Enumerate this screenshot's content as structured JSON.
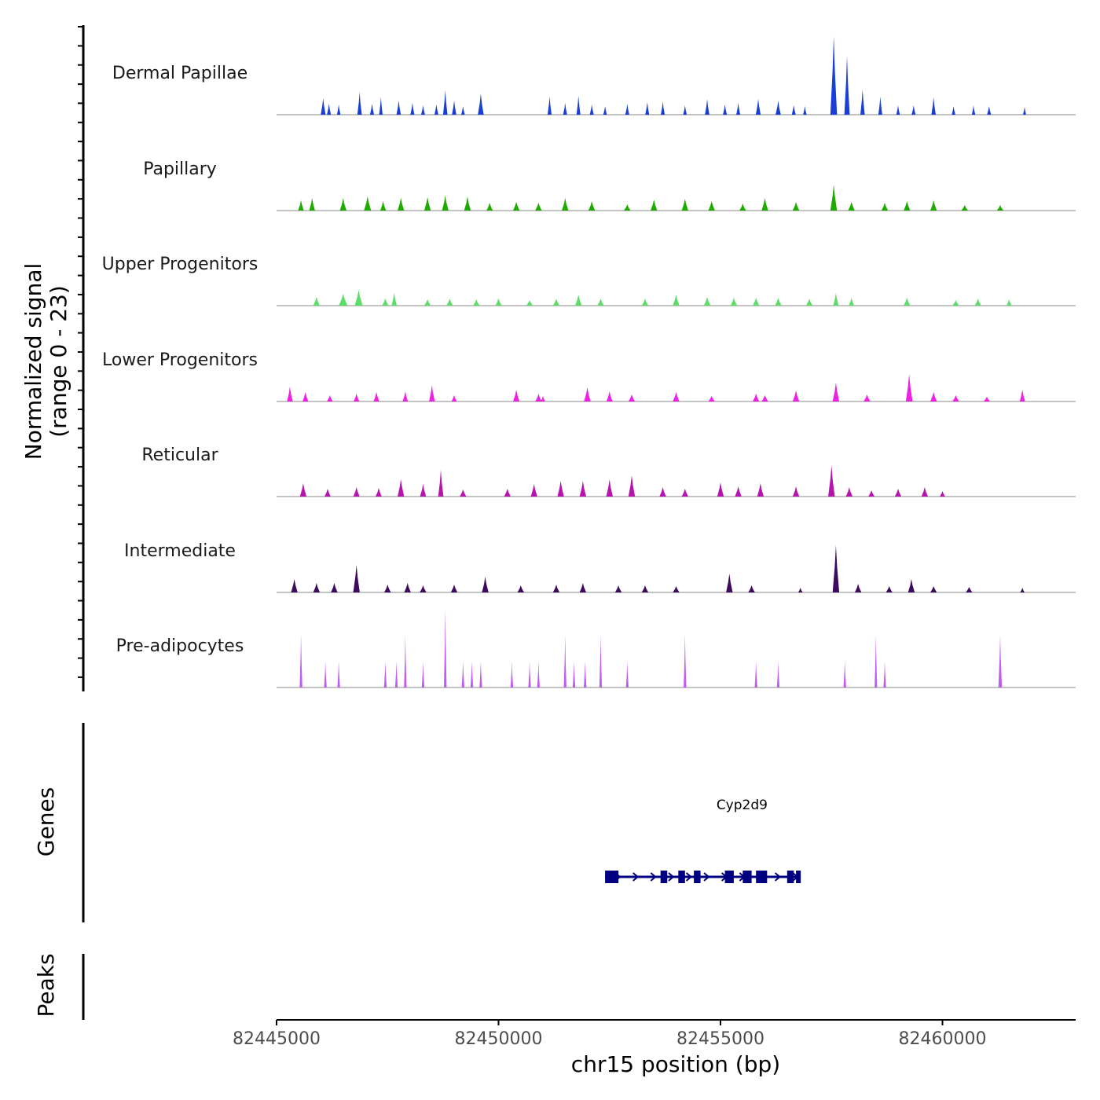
{
  "chart_data": {
    "type": "area",
    "title": "",
    "ylabel_line1": "Normalized signal",
    "ylabel_line2": "(range 0 - 23)",
    "xlabel": "chr15 position (bp)",
    "xlim": [
      82445000,
      82463000
    ],
    "ylim": [
      0,
      23
    ],
    "x_ticks": [
      82445000,
      82450000,
      82455000,
      82460000
    ],
    "tracks": [
      {
        "name": "Dermal Papillae",
        "color": "#1a3fd6",
        "peaks": [
          [
            82446050,
            0.21,
            0.11
          ],
          [
            82446180,
            0.14,
            0.09
          ],
          [
            82446400,
            0.13,
            0.08
          ],
          [
            82446870,
            0.29,
            0.1
          ],
          [
            82447150,
            0.14,
            0.09
          ],
          [
            82447350,
            0.22,
            0.08
          ],
          [
            82447750,
            0.18,
            0.1
          ],
          [
            82448060,
            0.15,
            0.09
          ],
          [
            82448300,
            0.12,
            0.09
          ],
          [
            82448600,
            0.13,
            0.09
          ],
          [
            82448800,
            0.31,
            0.1
          ],
          [
            82449000,
            0.18,
            0.1
          ],
          [
            82449200,
            0.11,
            0.08
          ],
          [
            82449600,
            0.27,
            0.13
          ],
          [
            82451150,
            0.23,
            0.09
          ],
          [
            82451500,
            0.15,
            0.09
          ],
          [
            82451800,
            0.24,
            0.09
          ],
          [
            82452100,
            0.13,
            0.09
          ],
          [
            82452400,
            0.11,
            0.08
          ],
          [
            82452900,
            0.14,
            0.09
          ],
          [
            82453350,
            0.16,
            0.09
          ],
          [
            82453700,
            0.17,
            0.09
          ],
          [
            82454200,
            0.12,
            0.08
          ],
          [
            82454700,
            0.2,
            0.1
          ],
          [
            82455100,
            0.13,
            0.09
          ],
          [
            82455400,
            0.15,
            0.09
          ],
          [
            82455850,
            0.2,
            0.11
          ],
          [
            82456300,
            0.18,
            0.12
          ],
          [
            82456650,
            0.12,
            0.09
          ],
          [
            82456900,
            0.11,
            0.08
          ],
          [
            82457550,
            1.0,
            0.15
          ],
          [
            82457850,
            0.75,
            0.12
          ],
          [
            82458200,
            0.32,
            0.1
          ],
          [
            82458600,
            0.23,
            0.09
          ],
          [
            82459000,
            0.12,
            0.08
          ],
          [
            82459350,
            0.12,
            0.09
          ],
          [
            82459800,
            0.22,
            0.1
          ],
          [
            82460250,
            0.11,
            0.08
          ],
          [
            82460700,
            0.12,
            0.08
          ],
          [
            82461050,
            0.11,
            0.09
          ],
          [
            82461850,
            0.1,
            0.07
          ]
        ]
      },
      {
        "name": "Papillary",
        "color": "#1faa00",
        "peaks": [
          [
            82445550,
            0.13,
            0.13
          ],
          [
            82445800,
            0.16,
            0.13
          ],
          [
            82446500,
            0.16,
            0.15
          ],
          [
            82447050,
            0.18,
            0.16
          ],
          [
            82447400,
            0.12,
            0.13
          ],
          [
            82447800,
            0.16,
            0.15
          ],
          [
            82448400,
            0.17,
            0.15
          ],
          [
            82448800,
            0.19,
            0.15
          ],
          [
            82449300,
            0.18,
            0.15
          ],
          [
            82449800,
            0.1,
            0.14
          ],
          [
            82450400,
            0.11,
            0.15
          ],
          [
            82450900,
            0.1,
            0.15
          ],
          [
            82451500,
            0.16,
            0.15
          ],
          [
            82452100,
            0.12,
            0.15
          ],
          [
            82452900,
            0.08,
            0.15
          ],
          [
            82453500,
            0.14,
            0.15
          ],
          [
            82454200,
            0.15,
            0.15
          ],
          [
            82454800,
            0.12,
            0.15
          ],
          [
            82455500,
            0.09,
            0.15
          ],
          [
            82456000,
            0.16,
            0.15
          ],
          [
            82456700,
            0.11,
            0.15
          ],
          [
            82457550,
            0.33,
            0.15
          ],
          [
            82457950,
            0.11,
            0.15
          ],
          [
            82458700,
            0.1,
            0.15
          ],
          [
            82459200,
            0.12,
            0.15
          ],
          [
            82459800,
            0.13,
            0.15
          ],
          [
            82460500,
            0.07,
            0.15
          ],
          [
            82461300,
            0.07,
            0.15
          ]
        ]
      },
      {
        "name": "Upper Progenitors",
        "color": "#5ddc68",
        "peaks": [
          [
            82445900,
            0.11,
            0.15
          ],
          [
            82446500,
            0.15,
            0.2
          ],
          [
            82446850,
            0.2,
            0.18
          ],
          [
            82447450,
            0.09,
            0.15
          ],
          [
            82447650,
            0.16,
            0.12
          ],
          [
            82448400,
            0.08,
            0.15
          ],
          [
            82448900,
            0.09,
            0.15
          ],
          [
            82449500,
            0.08,
            0.15
          ],
          [
            82450000,
            0.09,
            0.15
          ],
          [
            82450700,
            0.07,
            0.15
          ],
          [
            82451300,
            0.09,
            0.15
          ],
          [
            82451800,
            0.14,
            0.15
          ],
          [
            82452300,
            0.09,
            0.15
          ],
          [
            82453300,
            0.09,
            0.15
          ],
          [
            82454000,
            0.14,
            0.15
          ],
          [
            82454700,
            0.11,
            0.15
          ],
          [
            82455300,
            0.1,
            0.15
          ],
          [
            82455800,
            0.1,
            0.15
          ],
          [
            82456300,
            0.1,
            0.15
          ],
          [
            82457000,
            0.09,
            0.15
          ],
          [
            82457600,
            0.16,
            0.12
          ],
          [
            82457950,
            0.1,
            0.12
          ],
          [
            82459200,
            0.1,
            0.15
          ],
          [
            82460300,
            0.07,
            0.15
          ],
          [
            82460800,
            0.09,
            0.15
          ],
          [
            82461500,
            0.08,
            0.12
          ]
        ]
      },
      {
        "name": "Lower Progenitors",
        "color": "#ee20e4",
        "peaks": [
          [
            82445300,
            0.19,
            0.13
          ],
          [
            82445650,
            0.12,
            0.13
          ],
          [
            82446200,
            0.08,
            0.13
          ],
          [
            82446800,
            0.1,
            0.13
          ],
          [
            82447250,
            0.12,
            0.13
          ],
          [
            82447900,
            0.13,
            0.12
          ],
          [
            82448500,
            0.21,
            0.13
          ],
          [
            82449000,
            0.08,
            0.12
          ],
          [
            82450400,
            0.15,
            0.14
          ],
          [
            82450900,
            0.1,
            0.14
          ],
          [
            82451000,
            0.07,
            0.1
          ],
          [
            82452000,
            0.18,
            0.15
          ],
          [
            82452500,
            0.13,
            0.14
          ],
          [
            82453000,
            0.09,
            0.15
          ],
          [
            82454000,
            0.12,
            0.15
          ],
          [
            82454800,
            0.07,
            0.15
          ],
          [
            82455800,
            0.1,
            0.15
          ],
          [
            82456000,
            0.08,
            0.15
          ],
          [
            82456700,
            0.14,
            0.15
          ],
          [
            82457600,
            0.24,
            0.15
          ],
          [
            82458300,
            0.09,
            0.15
          ],
          [
            82459250,
            0.35,
            0.15
          ],
          [
            82459800,
            0.12,
            0.15
          ],
          [
            82460300,
            0.08,
            0.15
          ],
          [
            82461000,
            0.06,
            0.15
          ],
          [
            82461800,
            0.15,
            0.12
          ]
        ]
      },
      {
        "name": "Reticular",
        "color": "#b615ad",
        "peaks": [
          [
            82445600,
            0.17,
            0.15
          ],
          [
            82446150,
            0.1,
            0.14
          ],
          [
            82446800,
            0.12,
            0.14
          ],
          [
            82447300,
            0.11,
            0.14
          ],
          [
            82447800,
            0.22,
            0.15
          ],
          [
            82448300,
            0.16,
            0.14
          ],
          [
            82448700,
            0.34,
            0.12
          ],
          [
            82449200,
            0.09,
            0.15
          ],
          [
            82450200,
            0.1,
            0.15
          ],
          [
            82450800,
            0.16,
            0.15
          ],
          [
            82451400,
            0.2,
            0.15
          ],
          [
            82451900,
            0.2,
            0.15
          ],
          [
            82452500,
            0.22,
            0.15
          ],
          [
            82453000,
            0.27,
            0.15
          ],
          [
            82453700,
            0.12,
            0.15
          ],
          [
            82454200,
            0.1,
            0.15
          ],
          [
            82455000,
            0.18,
            0.15
          ],
          [
            82455400,
            0.13,
            0.15
          ],
          [
            82455900,
            0.17,
            0.15
          ],
          [
            82456700,
            0.13,
            0.15
          ],
          [
            82457500,
            0.4,
            0.15
          ],
          [
            82457900,
            0.12,
            0.15
          ],
          [
            82458400,
            0.08,
            0.14
          ],
          [
            82459000,
            0.1,
            0.15
          ],
          [
            82459600,
            0.12,
            0.15
          ],
          [
            82460000,
            0.07,
            0.12
          ]
        ]
      },
      {
        "name": "Intermediate",
        "color": "#3c0b5e",
        "peaks": [
          [
            82445400,
            0.17,
            0.15
          ],
          [
            82445900,
            0.12,
            0.15
          ],
          [
            82446300,
            0.12,
            0.15
          ],
          [
            82446800,
            0.35,
            0.15
          ],
          [
            82447500,
            0.1,
            0.15
          ],
          [
            82447950,
            0.12,
            0.15
          ],
          [
            82448300,
            0.09,
            0.15
          ],
          [
            82449000,
            0.1,
            0.15
          ],
          [
            82449700,
            0.2,
            0.15
          ],
          [
            82450500,
            0.09,
            0.15
          ],
          [
            82451300,
            0.1,
            0.15
          ],
          [
            82451900,
            0.12,
            0.15
          ],
          [
            82452700,
            0.09,
            0.15
          ],
          [
            82453300,
            0.09,
            0.15
          ],
          [
            82454000,
            0.08,
            0.15
          ],
          [
            82455200,
            0.24,
            0.15
          ],
          [
            82455700,
            0.09,
            0.15
          ],
          [
            82456800,
            0.06,
            0.1
          ],
          [
            82457600,
            0.6,
            0.15
          ],
          [
            82458100,
            0.11,
            0.15
          ],
          [
            82458800,
            0.08,
            0.15
          ],
          [
            82459300,
            0.17,
            0.15
          ],
          [
            82459800,
            0.08,
            0.15
          ],
          [
            82460600,
            0.07,
            0.15
          ],
          [
            82461800,
            0.06,
            0.1
          ]
        ]
      },
      {
        "name": "Pre-adipocytes",
        "color": "#c05cf2",
        "peaks": [
          [
            82445550,
            0.67,
            0.06
          ],
          [
            82446100,
            0.33,
            0.06
          ],
          [
            82446400,
            0.33,
            0.06
          ],
          [
            82447450,
            0.33,
            0.06
          ],
          [
            82447700,
            0.33,
            0.06
          ],
          [
            82447900,
            0.67,
            0.06
          ],
          [
            82448300,
            0.33,
            0.06
          ],
          [
            82448800,
            1.0,
            0.06
          ],
          [
            82449200,
            0.33,
            0.06
          ],
          [
            82449400,
            0.33,
            0.06
          ],
          [
            82449600,
            0.33,
            0.06
          ],
          [
            82450300,
            0.33,
            0.06
          ],
          [
            82450700,
            0.33,
            0.06
          ],
          [
            82450900,
            0.33,
            0.06
          ],
          [
            82451500,
            0.67,
            0.06
          ],
          [
            82451700,
            0.33,
            0.06
          ],
          [
            82451950,
            0.33,
            0.06
          ],
          [
            82452300,
            0.67,
            0.06
          ],
          [
            82452900,
            0.33,
            0.06
          ],
          [
            82454200,
            0.67,
            0.06
          ],
          [
            82455800,
            0.33,
            0.06
          ],
          [
            82456300,
            0.33,
            0.06
          ],
          [
            82457800,
            0.33,
            0.06
          ],
          [
            82458500,
            0.67,
            0.06
          ],
          [
            82458700,
            0.33,
            0.06
          ],
          [
            82461300,
            0.67,
            0.08
          ]
        ]
      }
    ],
    "genes_panel": {
      "title": "Genes",
      "gene_name": "Cyp2d9",
      "gene_start": 82452400,
      "gene_end": 82456800,
      "gene_color": "#000080",
      "exons": [
        [
          82452400,
          82452700
        ],
        [
          82453650,
          82453800
        ],
        [
          82454050,
          82454200
        ],
        [
          82454400,
          82454550
        ],
        [
          82455100,
          82455300
        ],
        [
          82455500,
          82455700
        ],
        [
          82455800,
          82456050
        ],
        [
          82456500,
          82456650
        ],
        [
          82456700,
          82456800
        ]
      ]
    },
    "peaks_panel": {
      "title": "Peaks"
    }
  }
}
